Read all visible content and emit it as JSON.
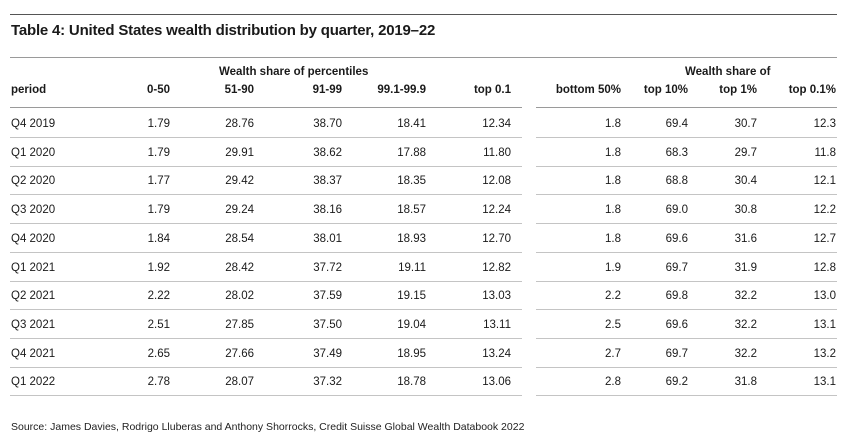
{
  "title": "Table 4: United States wealth distribution by quarter, 2019–22",
  "left_group_header": "Wealth share of percentiles",
  "right_group_header": "Wealth share of",
  "columns_left": [
    "period",
    "0-50",
    "51-90",
    "91-99",
    "99.1-99.9",
    "top 0.1"
  ],
  "columns_right": [
    "bottom 50%",
    "top 10%",
    "top 1%",
    "top 0.1%"
  ],
  "rows": [
    {
      "period": "Q4 2019",
      "left": [
        "1.79",
        "28.76",
        "38.70",
        "18.41",
        "12.34"
      ],
      "right": [
        "1.8",
        "69.4",
        "30.7",
        "12.3"
      ]
    },
    {
      "period": "Q1 2020",
      "left": [
        "1.79",
        "29.91",
        "38.62",
        "17.88",
        "11.80"
      ],
      "right": [
        "1.8",
        "68.3",
        "29.7",
        "11.8"
      ]
    },
    {
      "period": "Q2 2020",
      "left": [
        "1.77",
        "29.42",
        "38.37",
        "18.35",
        "12.08"
      ],
      "right": [
        "1.8",
        "68.8",
        "30.4",
        "12.1"
      ]
    },
    {
      "period": "Q3 2020",
      "left": [
        "1.79",
        "29.24",
        "38.16",
        "18.57",
        "12.24"
      ],
      "right": [
        "1.8",
        "69.0",
        "30.8",
        "12.2"
      ]
    },
    {
      "period": "Q4 2020",
      "left": [
        "1.84",
        "28.54",
        "38.01",
        "18.93",
        "12.70"
      ],
      "right": [
        "1.8",
        "69.6",
        "31.6",
        "12.7"
      ]
    },
    {
      "period": "Q1 2021",
      "left": [
        "1.92",
        "28.42",
        "37.72",
        "19.11",
        "12.82"
      ],
      "right": [
        "1.9",
        "69.7",
        "31.9",
        "12.8"
      ]
    },
    {
      "period": "Q2 2021",
      "left": [
        "2.22",
        "28.02",
        "37.59",
        "19.15",
        "13.03"
      ],
      "right": [
        "2.2",
        "69.8",
        "32.2",
        "13.0"
      ]
    },
    {
      "period": "Q3 2021",
      "left": [
        "2.51",
        "27.85",
        "37.50",
        "19.04",
        "13.11"
      ],
      "right": [
        "2.5",
        "69.6",
        "32.2",
        "13.1"
      ]
    },
    {
      "period": "Q4 2021",
      "left": [
        "2.65",
        "27.66",
        "37.49",
        "18.95",
        "13.24"
      ],
      "right": [
        "2.7",
        "69.7",
        "32.2",
        "13.2"
      ]
    },
    {
      "period": "Q1 2022",
      "left": [
        "2.78",
        "28.07",
        "37.32",
        "18.78",
        "13.06"
      ],
      "right": [
        "2.8",
        "69.2",
        "31.8",
        "13.1"
      ]
    }
  ],
  "source": "Source: James Davies, Rodrigo Lluberas and Anthony Shorrocks, Credit Suisse Global Wealth Databook 2022"
}
